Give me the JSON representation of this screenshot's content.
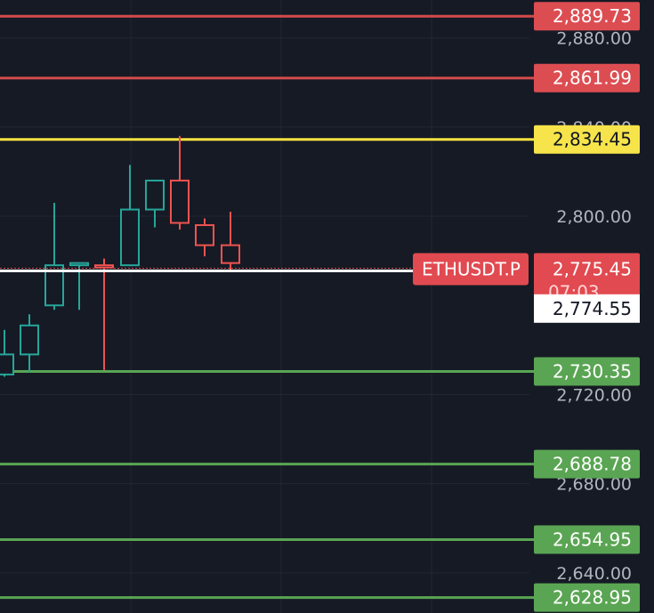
{
  "chart_data": {
    "type": "candlestick",
    "symbol": "ETHUSDT.P",
    "y_axis": {
      "ticks": [
        "2,880.00",
        "2,840.00",
        "2,800.00",
        "2,720.00",
        "2,680.00",
        "2,640.00"
      ],
      "tick_values": [
        2880,
        2840,
        2800,
        2720,
        2680,
        2640
      ],
      "range": [
        2622,
        2897
      ]
    },
    "levels": [
      {
        "label": "2,889.73",
        "value": 2889.73,
        "color": "#d24b4b",
        "badge": "#dc4d52",
        "text_color": "#ffffff"
      },
      {
        "label": "2,861.99",
        "value": 2861.99,
        "color": "#d24b4b",
        "badge": "#dc4d52",
        "text_color": "#ffffff"
      },
      {
        "label": "2,834.45",
        "value": 2834.45,
        "color": "#f5e23f",
        "badge": "#f6e44a",
        "text_color": "#131722"
      },
      {
        "label": "2,730.35",
        "value": 2730.35,
        "color": "#5aa553",
        "badge": "#5aa553",
        "text_color": "#ffffff"
      },
      {
        "label": "2,688.78",
        "value": 2688.78,
        "color": "#5aa553",
        "badge": "#5aa553",
        "text_color": "#ffffff"
      },
      {
        "label": "2,654.95",
        "value": 2654.95,
        "color": "#5aa553",
        "badge": "#5aa553",
        "text_color": "#ffffff"
      },
      {
        "label": "2,628.95",
        "value": 2628.95,
        "color": "#5aa553",
        "badge": "#5aa553",
        "text_color": "#ffffff"
      }
    ],
    "last_price": {
      "label": "2,775.45",
      "value": 2775.45,
      "countdown": "07:03",
      "color": "#e14a50"
    },
    "crosshair": {
      "label": "2,774.55",
      "value": 2774.55
    },
    "candles": [
      {
        "o": 2729,
        "h": 2749,
        "l": 2728,
        "c": 2738
      },
      {
        "o": 2738,
        "h": 2756,
        "l": 2730,
        "c": 2751
      },
      {
        "o": 2760,
        "h": 2806,
        "l": 2758,
        "c": 2778
      },
      {
        "o": 2778,
        "h": 2779,
        "l": 2758,
        "c": 2779
      },
      {
        "o": 2778,
        "h": 2781,
        "l": 2731,
        "c": 2777
      },
      {
        "o": 2778,
        "h": 2823,
        "l": 2778,
        "c": 2803
      },
      {
        "o": 2803,
        "h": 2816,
        "l": 2795,
        "c": 2816
      },
      {
        "o": 2816,
        "h": 2836,
        "l": 2794,
        "c": 2797
      },
      {
        "o": 2796,
        "h": 2799,
        "l": 2782,
        "c": 2787
      },
      {
        "o": 2787,
        "h": 2802,
        "l": 2775,
        "c": 2779
      }
    ],
    "colors": {
      "up": "#26a69a",
      "down": "#ef5350",
      "grid": "#232734",
      "background": "#161a25"
    }
  }
}
